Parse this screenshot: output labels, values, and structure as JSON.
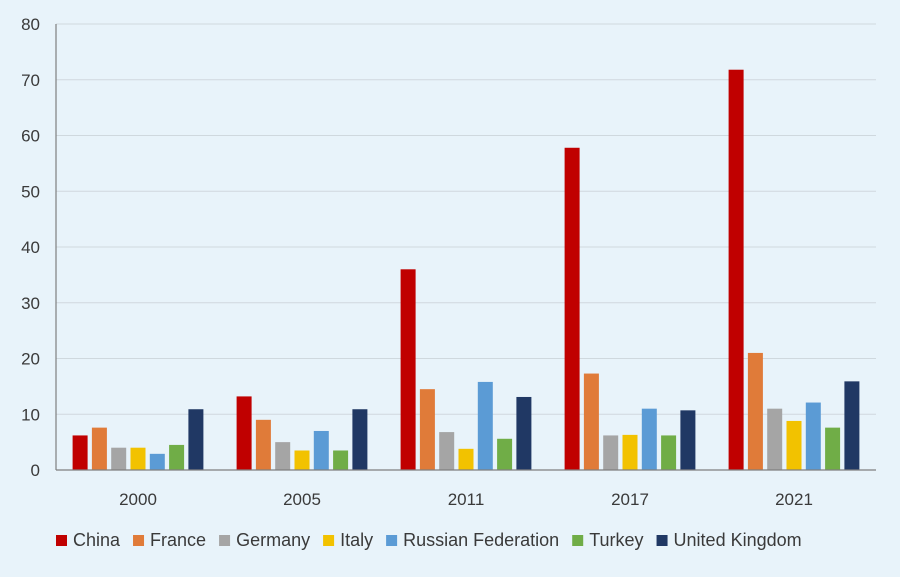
{
  "chart_data": {
    "type": "bar",
    "title": "",
    "xlabel": "",
    "ylabel": "",
    "categories": [
      "2000",
      "2005",
      "2011",
      "2017",
      "2021"
    ],
    "ylim": [
      0,
      80
    ],
    "yticks": [
      "0",
      "10",
      "20",
      "30",
      "40",
      "50",
      "60",
      "70",
      "80"
    ],
    "grid": true,
    "legend_position": "bottom",
    "series": [
      {
        "name": "China",
        "color": "#c00000",
        "values": [
          6.2,
          13.2,
          36.0,
          57.8,
          71.8
        ]
      },
      {
        "name": "France",
        "color": "#e07b39",
        "values": [
          7.6,
          9.0,
          14.5,
          17.3,
          21.0
        ]
      },
      {
        "name": "Germany",
        "color": "#a5a5a5",
        "values": [
          4.0,
          5.0,
          6.8,
          6.2,
          11.0
        ]
      },
      {
        "name": "Italy",
        "color": "#f2c200",
        "values": [
          4.0,
          3.5,
          3.8,
          6.3,
          8.8
        ]
      },
      {
        "name": "Russian Federation",
        "color": "#5b9bd5",
        "values": [
          2.9,
          7.0,
          15.8,
          11.0,
          12.1
        ]
      },
      {
        "name": "Turkey",
        "color": "#70ad47",
        "values": [
          4.5,
          3.5,
          5.6,
          6.2,
          7.6
        ]
      },
      {
        "name": "United Kingdom",
        "color": "#203864",
        "values": [
          10.9,
          10.9,
          13.1,
          10.7,
          15.9
        ]
      }
    ]
  }
}
